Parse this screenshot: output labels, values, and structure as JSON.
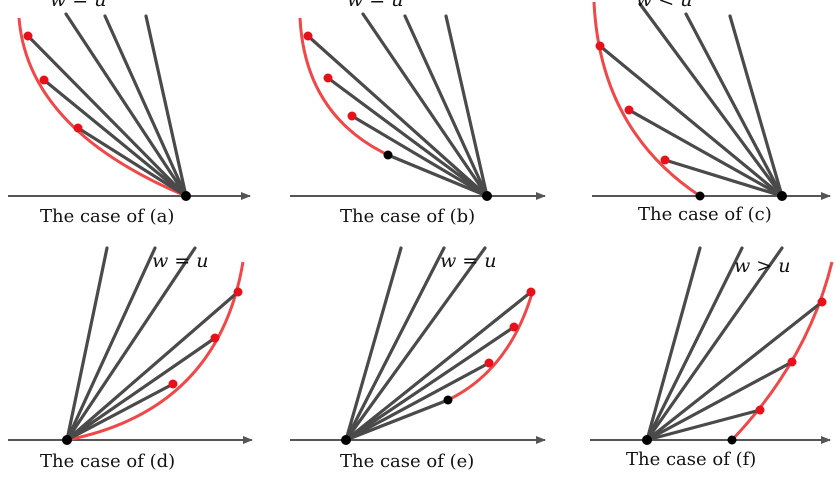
{
  "panels": [
    {
      "id": "a",
      "caption": "The case of (a)",
      "condition": "w = u"
    },
    {
      "id": "b",
      "caption": "The case of (b)",
      "condition": "w = u"
    },
    {
      "id": "c",
      "caption": "The case of (c)",
      "condition": "w < u"
    },
    {
      "id": "d",
      "caption": "The case of (d)",
      "condition": "w = u"
    },
    {
      "id": "e",
      "caption": "The case of (e)",
      "condition": "w = u"
    },
    {
      "id": "f",
      "caption": "The case of (f)",
      "condition": "w > u"
    }
  ],
  "colors": {
    "rays": "#4a4a4a",
    "axis": "#555555",
    "curve": "#f04848",
    "red_dot": "#e8101a",
    "black_dot": "#000000"
  }
}
